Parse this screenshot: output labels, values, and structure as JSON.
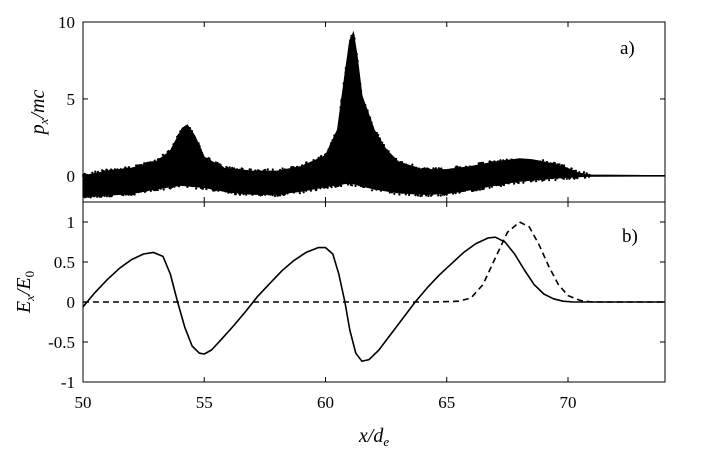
{
  "chart_data": [
    {
      "type": "scatter",
      "panel_label": "a)",
      "xlabel": "x/d_e",
      "ylabel": "p_x/mc",
      "xlim": [
        50,
        74
      ],
      "ylim": [
        -1.7,
        10
      ],
      "yticks": [
        0,
        5,
        10
      ],
      "y_tick_labels": [
        "0",
        "5",
        "10"
      ],
      "color": "#000000",
      "series": [
        {
          "description_points": "upper envelope of phase space band",
          "upper": [
            [
              50,
              0.0
            ],
            [
              51,
              0.3
            ],
            [
              52,
              0.5
            ],
            [
              53,
              0.9
            ],
            [
              53.6,
              1.6
            ],
            [
              54.1,
              3.1
            ],
            [
              54.3,
              3.3
            ],
            [
              54.6,
              2.6
            ],
            [
              55,
              1.2
            ],
            [
              55.8,
              0.5
            ],
            [
              57,
              0.3
            ],
            [
              58,
              0.3
            ],
            [
              59,
              0.6
            ],
            [
              60,
              1.3
            ],
            [
              60.5,
              3.0
            ],
            [
              60.8,
              6.5
            ],
            [
              61.0,
              8.8
            ],
            [
              61.15,
              9.3
            ],
            [
              61.3,
              7.8
            ],
            [
              61.5,
              5.2
            ],
            [
              62,
              3.0
            ],
            [
              62.5,
              1.7
            ],
            [
              63,
              0.9
            ],
            [
              64,
              0.4
            ],
            [
              65,
              0.4
            ],
            [
              66,
              0.6
            ],
            [
              67,
              0.9
            ],
            [
              68,
              1.1
            ],
            [
              68.5,
              1.05
            ],
            [
              69,
              0.9
            ],
            [
              69.8,
              0.6
            ],
            [
              70.4,
              0.2
            ],
            [
              70.9,
              0.05
            ],
            [
              74,
              0.0
            ]
          ],
          "lower": [
            [
              50,
              -1.3
            ],
            [
              51,
              -1.25
            ],
            [
              52,
              -1.15
            ],
            [
              53,
              -0.85
            ],
            [
              54,
              -0.6
            ],
            [
              55,
              -0.75
            ],
            [
              56,
              -1.05
            ],
            [
              57,
              -1.2
            ],
            [
              58,
              -1.2
            ],
            [
              59,
              -1.0
            ],
            [
              60,
              -0.7
            ],
            [
              61,
              -0.45
            ],
            [
              62,
              -0.85
            ],
            [
              63,
              -1.1
            ],
            [
              64,
              -1.2
            ],
            [
              65,
              -1.15
            ],
            [
              66,
              -0.9
            ],
            [
              67,
              -0.6
            ],
            [
              68,
              -0.35
            ],
            [
              69,
              -0.2
            ],
            [
              70,
              -0.08
            ],
            [
              70.9,
              -0.02
            ],
            [
              74,
              0.0
            ]
          ],
          "core": [
            [
              50,
              -0.9
            ],
            [
              51,
              -0.75
            ],
            [
              52,
              -0.5
            ],
            [
              53,
              -0.2
            ],
            [
              54,
              0.15
            ],
            [
              55,
              -0.05
            ],
            [
              56,
              -0.45
            ],
            [
              57,
              -0.6
            ],
            [
              58,
              -0.55
            ],
            [
              59,
              -0.3
            ],
            [
              60,
              -0.05
            ],
            [
              61,
              0.3
            ],
            [
              62,
              0.0
            ],
            [
              63,
              -0.35
            ],
            [
              64,
              -0.55
            ],
            [
              65,
              -0.45
            ],
            [
              66,
              -0.2
            ],
            [
              67,
              0.05
            ],
            [
              68,
              0.2
            ],
            [
              69,
              0.15
            ],
            [
              70,
              0.05
            ],
            [
              71,
              0.0
            ],
            [
              74,
              0.0
            ]
          ]
        }
      ]
    },
    {
      "type": "line",
      "panel_label": "b)",
      "xlabel": "x/d_e",
      "ylabel": "E_x/E_0",
      "xlim": [
        50,
        74
      ],
      "ylim": [
        -1,
        1.25
      ],
      "yticks": [
        -1,
        -0.5,
        0,
        0.5,
        1
      ],
      "y_tick_labels": [
        "-1",
        "-0.5",
        "0",
        "0.5",
        "1"
      ],
      "series": [
        {
          "style": "solid",
          "points": [
            [
              50,
              -0.06
            ],
            [
              50.5,
              0.12
            ],
            [
              51,
              0.28
            ],
            [
              51.5,
              0.42
            ],
            [
              52,
              0.53
            ],
            [
              52.5,
              0.6
            ],
            [
              52.9,
              0.62
            ],
            [
              53.3,
              0.57
            ],
            [
              53.6,
              0.35
            ],
            [
              53.9,
              0.0
            ],
            [
              54.2,
              -0.32
            ],
            [
              54.5,
              -0.55
            ],
            [
              54.8,
              -0.64
            ],
            [
              55.0,
              -0.65
            ],
            [
              55.3,
              -0.6
            ],
            [
              55.7,
              -0.47
            ],
            [
              56.2,
              -0.3
            ],
            [
              56.7,
              -0.12
            ],
            [
              57.2,
              0.07
            ],
            [
              57.7,
              0.23
            ],
            [
              58.2,
              0.39
            ],
            [
              58.7,
              0.52
            ],
            [
              59.2,
              0.62
            ],
            [
              59.7,
              0.68
            ],
            [
              60.0,
              0.68
            ],
            [
              60.3,
              0.6
            ],
            [
              60.55,
              0.35
            ],
            [
              60.8,
              0.0
            ],
            [
              61.0,
              -0.35
            ],
            [
              61.25,
              -0.64
            ],
            [
              61.5,
              -0.74
            ],
            [
              61.8,
              -0.72
            ],
            [
              62.2,
              -0.6
            ],
            [
              62.7,
              -0.4
            ],
            [
              63.2,
              -0.2
            ],
            [
              63.7,
              0.0
            ],
            [
              64.2,
              0.18
            ],
            [
              64.7,
              0.34
            ],
            [
              65.2,
              0.48
            ],
            [
              65.7,
              0.62
            ],
            [
              66.2,
              0.73
            ],
            [
              66.7,
              0.8
            ],
            [
              67.0,
              0.81
            ],
            [
              67.4,
              0.75
            ],
            [
              67.8,
              0.6
            ],
            [
              68.2,
              0.4
            ],
            [
              68.6,
              0.22
            ],
            [
              69.0,
              0.1
            ],
            [
              69.4,
              0.04
            ],
            [
              69.8,
              0.01
            ],
            [
              70.2,
              0.0
            ],
            [
              74,
              0.0
            ]
          ]
        },
        {
          "style": "dashed",
          "points": [
            [
              50,
              0.0
            ],
            [
              64.5,
              0.0
            ],
            [
              65.5,
              0.01
            ],
            [
              66,
              0.05
            ],
            [
              66.5,
              0.22
            ],
            [
              67,
              0.55
            ],
            [
              67.5,
              0.87
            ],
            [
              68,
              1.0
            ],
            [
              68.4,
              0.94
            ],
            [
              68.8,
              0.72
            ],
            [
              69.2,
              0.45
            ],
            [
              69.6,
              0.22
            ],
            [
              70,
              0.08
            ],
            [
              70.5,
              0.02
            ],
            [
              71,
              0.0
            ],
            [
              74,
              0.0
            ]
          ]
        }
      ],
      "xticks": [
        50,
        55,
        60,
        65,
        70
      ],
      "x_tick_labels": [
        "50",
        "55",
        "60",
        "65",
        "70"
      ]
    }
  ]
}
